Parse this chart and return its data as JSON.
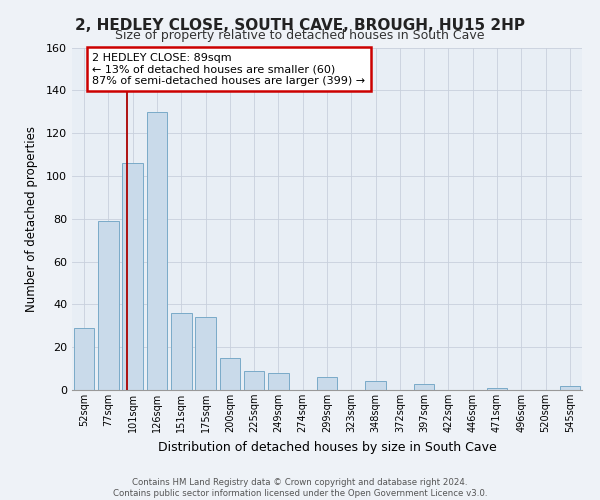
{
  "title": "2, HEDLEY CLOSE, SOUTH CAVE, BROUGH, HU15 2HP",
  "subtitle": "Size of property relative to detached houses in South Cave",
  "xlabel": "Distribution of detached houses by size in South Cave",
  "ylabel": "Number of detached properties",
  "bar_color": "#c9daea",
  "bar_edge_color": "#7aaac8",
  "categories": [
    "52sqm",
    "77sqm",
    "101sqm",
    "126sqm",
    "151sqm",
    "175sqm",
    "200sqm",
    "225sqm",
    "249sqm",
    "274sqm",
    "299sqm",
    "323sqm",
    "348sqm",
    "372sqm",
    "397sqm",
    "422sqm",
    "446sqm",
    "471sqm",
    "496sqm",
    "520sqm",
    "545sqm"
  ],
  "values": [
    29,
    79,
    106,
    130,
    36,
    34,
    15,
    9,
    8,
    0,
    6,
    0,
    4,
    0,
    3,
    0,
    0,
    1,
    0,
    0,
    2
  ],
  "ylim": [
    0,
    160
  ],
  "yticks": [
    0,
    20,
    40,
    60,
    80,
    100,
    120,
    140,
    160
  ],
  "marker_line_color": "#aa0000",
  "annotation_title": "2 HEDLEY CLOSE: 89sqm",
  "annotation_line1": "← 13% of detached houses are smaller (60)",
  "annotation_line2": "87% of semi-detached houses are larger (399) →",
  "annotation_box_facecolor": "#ffffff",
  "annotation_box_edgecolor": "#cc0000",
  "footer_line1": "Contains HM Land Registry data © Crown copyright and database right 2024.",
  "footer_line2": "Contains public sector information licensed under the Open Government Licence v3.0.",
  "bg_color": "#eef2f7",
  "plot_bg_color": "#e8eef5"
}
